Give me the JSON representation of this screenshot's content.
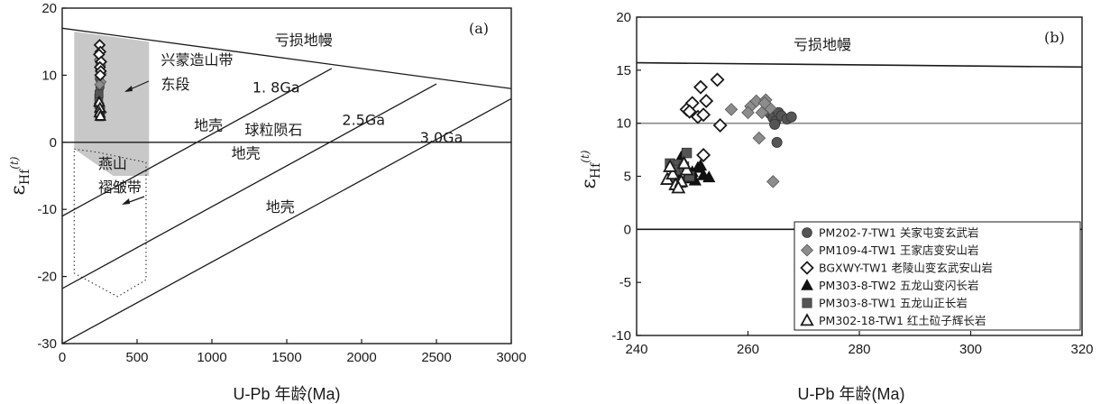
{
  "chart_data": [
    {
      "type": "scatter",
      "panel_label": "(a)",
      "xlabel": "U-Pb 年龄(Ma)",
      "ylabel": "εHf(t)",
      "xlim": [
        0,
        3000
      ],
      "ylim": [
        -30,
        20
      ],
      "xticks": [
        0,
        500,
        1000,
        1500,
        2000,
        2500,
        3000
      ],
      "yticks": [
        -30,
        -20,
        -10,
        0,
        10,
        20
      ],
      "reference_lines": [
        {
          "name": "亏损地幔",
          "x": [
            0,
            3000
          ],
          "y": [
            17,
            8
          ]
        },
        {
          "name": "1.8Ga",
          "x": [
            0,
            1800
          ],
          "y": [
            -11,
            11
          ]
        },
        {
          "name": "2.5Ga",
          "x": [
            0,
            2500
          ],
          "y": [
            -21.8,
            8.7
          ]
        },
        {
          "name": "3.0Ga",
          "x": [
            0,
            3000
          ],
          "y": [
            -30,
            6.5
          ]
        },
        {
          "name": "球粒陨石",
          "x": [
            0,
            3000
          ],
          "y": [
            0,
            0
          ]
        }
      ],
      "regions": [
        {
          "name": "兴蒙造山带东段",
          "style": "gray-fill",
          "polygon": [
            [
              80,
              16.5
            ],
            [
              580,
              15
            ],
            [
              580,
              -5
            ],
            [
              340,
              -5
            ],
            [
              80,
              -1
            ]
          ]
        },
        {
          "name": "燕山褶皱带",
          "style": "dotted",
          "polygon": [
            [
              80,
              -1
            ],
            [
              240,
              -1.5
            ],
            [
              560,
              -3
            ],
            [
              560,
              -20.5
            ],
            [
              370,
              -23
            ],
            [
              80,
              -19.5
            ]
          ]
        }
      ],
      "series": [
        {
          "marker": "circle",
          "points": [
            [
              250,
              11
            ],
            [
              255,
              10.5
            ],
            [
              248,
              9.5
            ],
            [
              252,
              8.2
            ],
            [
              258,
              11.3
            ],
            [
              246,
              12.2
            ]
          ]
        },
        {
          "marker": "diamond",
          "points": [
            [
              248,
              12.3
            ],
            [
              256,
              11.5
            ],
            [
              262,
              10.2
            ],
            [
              260,
              9.0
            ],
            [
              250,
              8.6
            ],
            [
              264,
              4.5
            ]
          ]
        },
        {
          "marker": "open-diamond",
          "points": [
            [
              250,
              14.5
            ],
            [
              255,
              13.5
            ],
            [
              246,
              13.1
            ],
            [
              260,
              12.0
            ],
            [
              252,
              11.2
            ],
            [
              258,
              10.6
            ],
            [
              254,
              10.0
            ]
          ]
        },
        {
          "marker": "triangle",
          "points": [
            [
              246,
              6.3
            ],
            [
              252,
              5.6
            ],
            [
              258,
              5.0
            ],
            [
              250,
              4.7
            ],
            [
              256,
              4.3
            ],
            [
              248,
              5.8
            ]
          ]
        },
        {
          "marker": "square",
          "points": [
            [
              244,
              6.6
            ],
            [
              250,
              5.3
            ],
            [
              256,
              4.9
            ],
            [
              248,
              4.2
            ],
            [
              254,
              3.8
            ],
            [
              246,
              7.2
            ]
          ]
        },
        {
          "marker": "open-triangle",
          "points": [
            [
              247,
              6.0
            ],
            [
              252,
              5.1
            ],
            [
              249,
              4.4
            ],
            [
              255,
              3.9
            ]
          ]
        }
      ],
      "annotations": [
        {
          "name": "depleted_mantle",
          "text": "亏损地幔",
          "x": 1420,
          "y": 14.5
        },
        {
          "name": "xingmeng_line1",
          "text": "兴蒙造山带",
          "x": 660,
          "y": 11.5
        },
        {
          "name": "xingmeng_line2",
          "text": "东段",
          "x": 660,
          "y": 7.9
        },
        {
          "name": "age_1_8",
          "text": "1. 8Ga",
          "x": 1270,
          "y": 7.4
        },
        {
          "name": "crust_1",
          "text": "地壳",
          "x": 880,
          "y": 1.8
        },
        {
          "name": "chondrite",
          "text": "球粒陨石",
          "x": 1220,
          "y": 1.1
        },
        {
          "name": "age_2_5",
          "text": "2.5Ga",
          "x": 1870,
          "y": 2.6
        },
        {
          "name": "age_3_0",
          "text": "3.0Ga",
          "x": 2390,
          "y": 0.0
        },
        {
          "name": "crust_2",
          "text": "地壳",
          "x": 1130,
          "y": -2.4
        },
        {
          "name": "yanshan_line1",
          "text": "燕山",
          "x": 240,
          "y": -3.9
        },
        {
          "name": "yanshan_line2",
          "text": "褶皱带",
          "x": 240,
          "y": -7.4
        },
        {
          "name": "crust_3",
          "text": "地壳",
          "x": 1360,
          "y": -10.4
        }
      ]
    },
    {
      "type": "scatter",
      "panel_label": "(b)",
      "xlabel": "U-Pb 年龄(Ma)",
      "ylabel": "εHf(t)",
      "xlim": [
        240,
        320
      ],
      "ylim": [
        -10,
        20
      ],
      "xticks": [
        240,
        260,
        280,
        300,
        320
      ],
      "yticks": [
        -10,
        -5,
        0,
        5,
        10,
        15,
        20
      ],
      "reference_lines": [
        {
          "name": "亏损地幔",
          "x": [
            240,
            320
          ],
          "y": [
            15.7,
            15.3
          ]
        },
        {
          "name": "chur-10",
          "x": [
            240,
            320
          ],
          "y": [
            10,
            10
          ]
        },
        {
          "name": "chur-0",
          "x": [
            240,
            320
          ],
          "y": [
            0,
            0
          ]
        }
      ],
      "depleted_mantle_label": "亏损地幔",
      "legend_position": "bottom-right",
      "series": [
        {
          "name": "PM202-7-TW1 关家屯变玄武岩",
          "marker": "circle",
          "points": [
            [
              263.5,
              11.2
            ],
            [
              264.0,
              10.9
            ],
            [
              264.5,
              10.5
            ],
            [
              265.0,
              10.2
            ],
            [
              265.5,
              11.0
            ],
            [
              266.0,
              10.7
            ],
            [
              264.8,
              9.9
            ],
            [
              267.0,
              10.4
            ],
            [
              267.8,
              10.6
            ],
            [
              265.2,
              8.2
            ]
          ]
        },
        {
          "name": "PM109-4-TW1 王家店变安山岩",
          "marker": "diamond",
          "points": [
            [
              257.0,
              11.3
            ],
            [
              260.5,
              11.6
            ],
            [
              261.5,
              12.1
            ],
            [
              262.5,
              11.0
            ],
            [
              263.2,
              12.2
            ],
            [
              264.0,
              11.4
            ],
            [
              262.0,
              8.6
            ],
            [
              264.5,
              4.5
            ],
            [
              260.0,
              11.0
            ],
            [
              263.0,
              11.9
            ]
          ]
        },
        {
          "name": "BGXWY-TW1 老陵山变玄武安山岩",
          "marker": "open-diamond",
          "points": [
            [
              249.0,
              11.3
            ],
            [
              250.0,
              11.9
            ],
            [
              251.0,
              10.6
            ],
            [
              251.5,
              13.4
            ],
            [
              252.0,
              10.8
            ],
            [
              252.5,
              12.1
            ],
            [
              254.5,
              14.1
            ],
            [
              255.0,
              9.8
            ],
            [
              252.0,
              7.0
            ],
            [
              249.5,
              11.1
            ]
          ]
        },
        {
          "name": "PM303-8-TW2 五龙山变闪长岩",
          "marker": "triangle",
          "points": [
            [
              247.0,
              5.3
            ],
            [
              248.0,
              6.8
            ],
            [
              249.0,
              5.0
            ],
            [
              250.0,
              5.4
            ],
            [
              250.5,
              4.6
            ],
            [
              251.0,
              5.8
            ],
            [
              252.0,
              5.1
            ],
            [
              253.0,
              4.9
            ],
            [
              251.5,
              6.0
            ],
            [
              249.5,
              4.8
            ]
          ]
        },
        {
          "name": "PM303-8-TW1 五龙山正长岩",
          "marker": "square",
          "points": [
            [
              246.0,
              6.2
            ],
            [
              247.5,
              6.1
            ],
            [
              249.0,
              7.2
            ],
            [
              246.5,
              4.8
            ],
            [
              248.0,
              4.4
            ],
            [
              247.0,
              5.6
            ],
            [
              249.5,
              5.0
            ],
            [
              248.5,
              5.9
            ]
          ]
        },
        {
          "name": "PM302-18-TW1 红土砬子辉长岩",
          "marker": "open-triangle",
          "points": [
            [
              245.5,
              4.7
            ],
            [
              246.5,
              5.2
            ],
            [
              247.0,
              4.2
            ],
            [
              248.0,
              4.5
            ],
            [
              247.5,
              3.9
            ],
            [
              249.0,
              5.6
            ],
            [
              246.0,
              5.9
            ],
            [
              248.5,
              6.2
            ]
          ]
        }
      ]
    }
  ]
}
